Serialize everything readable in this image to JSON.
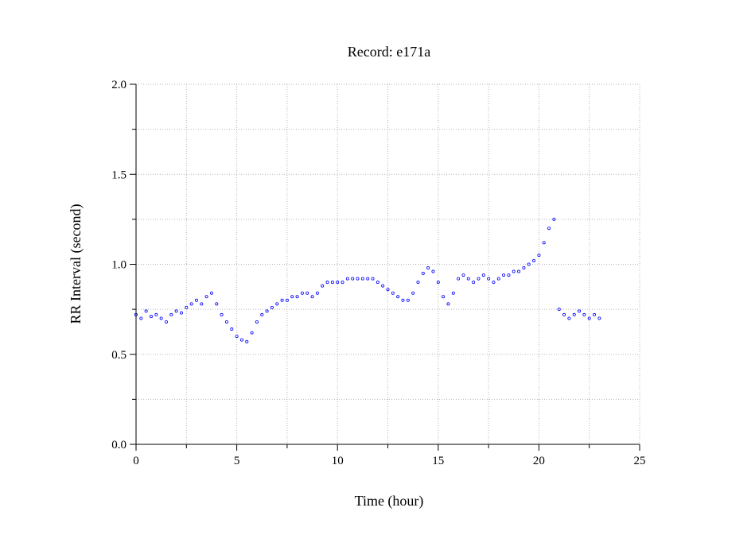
{
  "chart_data": {
    "type": "scatter",
    "title": "Record:  e171a",
    "xlabel": "Time (hour)",
    "ylabel": "RR Interval (second)",
    "xlim": [
      0,
      25
    ],
    "ylim": [
      0,
      2
    ],
    "x_ticks": [
      0,
      5,
      10,
      15,
      20,
      25
    ],
    "x_tick_labels": [
      "0",
      "5",
      "10",
      "15",
      "20",
      "25"
    ],
    "y_ticks": [
      0,
      0.5,
      1,
      1.5,
      2
    ],
    "y_tick_labels": [
      "0.0",
      "0.5",
      "1.0",
      "1.5",
      "2.0"
    ],
    "grid": true,
    "marker": "open-circle",
    "point_color": "#0000ff",
    "series": [
      {
        "x": [
          0.0,
          0.25,
          0.5,
          0.75,
          1.0,
          1.25,
          1.5,
          1.75,
          2.0,
          2.25,
          2.5,
          2.75,
          3.0,
          3.25,
          3.5,
          3.75,
          4.0,
          4.25,
          4.5,
          4.75,
          5.0,
          5.25,
          5.5,
          5.75,
          6.0,
          6.25,
          6.5,
          6.75,
          7.0,
          7.25,
          7.5,
          7.75,
          8.0,
          8.25,
          8.5,
          8.75,
          9.0,
          9.25,
          9.5,
          9.75,
          10.0,
          10.25,
          10.5,
          10.75,
          11.0,
          11.25,
          11.5,
          11.75,
          12.0,
          12.25,
          12.5,
          12.75,
          13.0,
          13.25,
          13.5,
          13.75,
          14.0,
          14.25,
          14.5,
          14.75,
          15.0,
          15.25,
          15.5,
          15.75,
          16.0,
          16.25,
          16.5,
          16.75,
          17.0,
          17.25,
          17.5,
          17.75,
          18.0,
          18.25,
          18.5,
          18.75,
          19.0,
          19.25,
          19.5,
          19.75,
          20.0,
          20.25,
          20.5,
          20.75,
          21.0,
          21.25,
          21.5,
          21.75,
          22.0,
          22.25,
          22.5,
          22.75,
          23.0
        ],
        "y": [
          0.72,
          0.7,
          0.74,
          0.71,
          0.72,
          0.7,
          0.68,
          0.72,
          0.74,
          0.73,
          0.76,
          0.78,
          0.8,
          0.78,
          0.82,
          0.84,
          0.78,
          0.72,
          0.68,
          0.64,
          0.6,
          0.58,
          0.57,
          0.62,
          0.68,
          0.72,
          0.74,
          0.76,
          0.78,
          0.8,
          0.8,
          0.82,
          0.82,
          0.84,
          0.84,
          0.82,
          0.84,
          0.88,
          0.9,
          0.9,
          0.9,
          0.9,
          0.92,
          0.92,
          0.92,
          0.92,
          0.92,
          0.92,
          0.9,
          0.88,
          0.86,
          0.84,
          0.82,
          0.8,
          0.8,
          0.84,
          0.9,
          0.95,
          0.98,
          0.96,
          0.9,
          0.82,
          0.78,
          0.84,
          0.92,
          0.94,
          0.92,
          0.9,
          0.92,
          0.94,
          0.92,
          0.9,
          0.92,
          0.94,
          0.94,
          0.96,
          0.96,
          0.98,
          1.0,
          1.02,
          1.05,
          1.12,
          1.2,
          1.25,
          0.75,
          0.72,
          0.7,
          0.72,
          0.74,
          0.72,
          0.7,
          0.72,
          0.7
        ]
      }
    ]
  }
}
